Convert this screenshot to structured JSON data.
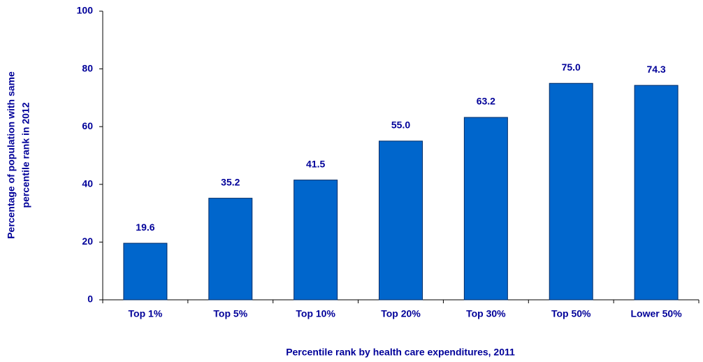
{
  "chart_data": {
    "type": "bar",
    "xlabel": "Percentile rank by health care expenditures, 2011",
    "ylabel": [
      "Percentage of population with same",
      "percentile rank in 2012"
    ],
    "categories": [
      "Top 1%",
      "Top 5%",
      "Top 10%",
      "Top 20%",
      "Top 30%",
      "Top 50%",
      "Lower 50%"
    ],
    "values": [
      19.6,
      35.2,
      41.5,
      55.0,
      63.2,
      75.0,
      74.3
    ],
    "value_labels": [
      "19.6",
      "35.2",
      "41.5",
      "55.0",
      "63.2",
      "75.0",
      "74.3"
    ],
    "color": "#0066cc",
    "ylim": [
      0,
      100
    ],
    "yticks": [
      0,
      20,
      40,
      60,
      80,
      100
    ],
    "grid": false
  }
}
